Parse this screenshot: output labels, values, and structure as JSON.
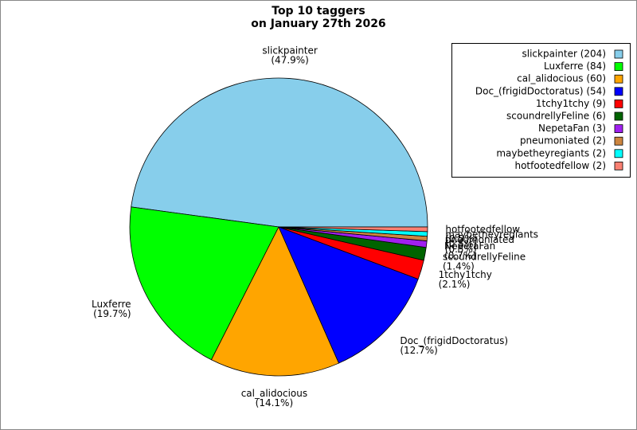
{
  "chart_data": {
    "type": "pie",
    "title": [
      "Top 10 taggers",
      "on January 27th 2026"
    ],
    "categories": [
      "slickpainter",
      "Luxferre",
      "cal_alidocious",
      "Doc_(frigidDoctoratus)",
      "1tchy1tchy",
      "scoundrellyFeline",
      "NepetaFan",
      "pneumoniated",
      "maybetheyregiants",
      "hotfootedfellow"
    ],
    "values": [
      47.9,
      19.7,
      14.1,
      12.7,
      2.1,
      1.4,
      0.7,
      0.5,
      0.5,
      0.5
    ],
    "value_labels": [
      "(47.9%)",
      "(19.7%)",
      "(14.1%)",
      "(12.7%)",
      "(2.1%)",
      "(1.4%)",
      "(0.7%)",
      "(0.5%)",
      "(0.5%)",
      "(0.5%)"
    ],
    "colors": [
      "#87ceeb",
      "#00ff00",
      "#ffa500",
      "#0000ff",
      "#ff0000",
      "#006400",
      "#a020f0",
      "#cd853f",
      "#00ffff",
      "#fa8072"
    ],
    "legend": [
      "slickpainter (204)",
      "Luxferre (84)",
      "cal_alidocious (60)",
      "Doc_(frigidDoctoratus) (54)",
      "1tchy1tchy (9)",
      "scoundrellyFeline (6)",
      "NepetaFan (3)",
      "pneumoniated (2)",
      "maybetheyregiants (2)",
      "hotfootedfellow (2)"
    ],
    "legend_position": "upper right"
  }
}
